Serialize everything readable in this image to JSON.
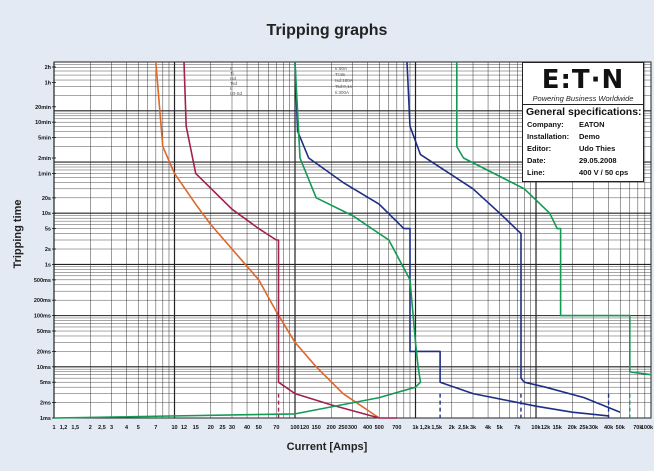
{
  "chart_data": {
    "type": "line",
    "title": "Tripping graphs",
    "xlabel": "Current [Amps]",
    "ylabel": "Tripping time",
    "x_scale": "log",
    "y_scale": "log",
    "xlim": [
      1,
      90000
    ],
    "ylim_seconds": [
      0.001,
      9000
    ],
    "x_tick_labels": [
      "1",
      "1,2",
      "1,5",
      "2",
      "2,5",
      "3",
      "4",
      "5",
      "7",
      "10",
      "12",
      "15",
      "20",
      "25",
      "30",
      "40",
      "50",
      "70",
      "100",
      "120",
      "150",
      "200",
      "250",
      "300",
      "400",
      "500",
      "700",
      "1k",
      "1,2k",
      "1,5k",
      "2k",
      "2,5k",
      "3k",
      "4k",
      "5k",
      "7k",
      "10k",
      "12k",
      "15k",
      "20k",
      "25k",
      "30k",
      "40k",
      "50k",
      "70k",
      "100k"
    ],
    "y_tick_labels": [
      "2h",
      "1h",
      "20min",
      "10min",
      "5min",
      "2min",
      "1min",
      "20s",
      "10s",
      "5s",
      "2s",
      "1s",
      "500ms",
      "200ms",
      "100ms",
      "50ms",
      "20ms",
      "10ms",
      "5ms",
      "2ms",
      "1ms"
    ],
    "grid": true,
    "series": [
      {
        "color": "#e0662a",
        "values": [
          [
            7,
            9000
          ],
          [
            8,
            200
          ],
          [
            10,
            60
          ],
          [
            15,
            15
          ],
          [
            20,
            6
          ],
          [
            30,
            2
          ],
          [
            50,
            0.5
          ],
          [
            70,
            0.12
          ],
          [
            100,
            0.03
          ],
          [
            150,
            0.01
          ],
          [
            250,
            0.003
          ],
          [
            500,
            0.001
          ]
        ]
      },
      {
        "color": "#a0204e",
        "values": [
          [
            12,
            9000
          ],
          [
            12.5,
            500
          ],
          [
            15,
            60
          ],
          [
            30,
            12
          ],
          [
            50,
            5
          ],
          [
            70,
            3
          ],
          [
            73,
            3
          ],
          [
            73,
            0.005
          ],
          [
            100,
            0.003
          ],
          [
            200,
            0.0018
          ],
          [
            500,
            0.001
          ],
          [
            700,
            0.001
          ]
        ]
      },
      {
        "color": "#1e2e85",
        "values": [
          [
            100,
            9000
          ],
          [
            105,
            400
          ],
          [
            130,
            120
          ],
          [
            250,
            40
          ],
          [
            500,
            15
          ],
          [
            800,
            5
          ],
          [
            900,
            5
          ],
          [
            900,
            0.02
          ],
          [
            1600,
            0.02
          ],
          [
            1600,
            0.005
          ],
          [
            3000,
            0.003
          ],
          [
            10000,
            0.0017
          ],
          [
            20000,
            0.0013
          ],
          [
            40000,
            0.0011
          ]
        ]
      },
      {
        "color": "#1e2e85",
        "values": [
          [
            850,
            9000
          ],
          [
            900,
            500
          ],
          [
            1100,
            140
          ],
          [
            3000,
            30
          ],
          [
            5000,
            10
          ],
          [
            7500,
            4
          ],
          [
            7500,
            0.006
          ],
          [
            8000,
            0.005
          ],
          [
            12000,
            0.004
          ],
          [
            25000,
            0.0025
          ],
          [
            50000,
            0.0013
          ]
        ]
      },
      {
        "color": "#139a55",
        "values": [
          [
            1,
            0.001
          ],
          [
            100,
            0.0012
          ],
          [
            500,
            0.0025
          ],
          [
            1000,
            0.004
          ],
          [
            1100,
            0.005
          ],
          [
            1050,
            0.01
          ],
          [
            1000,
            0.03
          ],
          [
            900,
            0.5
          ],
          [
            600,
            3
          ],
          [
            300,
            9
          ],
          [
            150,
            20
          ],
          [
            110,
            120
          ],
          [
            100,
            9000
          ]
        ]
      },
      {
        "color": "#139a55",
        "values": [
          [
            2200,
            9000
          ],
          [
            2200,
            200
          ],
          [
            2500,
            120
          ],
          [
            8000,
            30
          ],
          [
            13000,
            10
          ],
          [
            15000,
            5
          ],
          [
            16000,
            5
          ],
          [
            16000,
            0.1
          ],
          [
            60000,
            0.1
          ],
          [
            60000,
            0.008
          ],
          [
            90000,
            0.007
          ]
        ]
      }
    ],
    "curve_labels": [
      "Ir",
      "Ti",
      "Isd",
      "Tsd",
      "Ii",
      "I2t-Sd",
      "Ir:60A",
      "Tr:8s",
      "Isd:180A",
      "Tsd:0,1s",
      "Ii:300A"
    ],
    "colors": {
      "background": "#e3eaf3",
      "plot_background": "#ffffff",
      "grid": "#222222"
    }
  },
  "info_box": {
    "logo": "E:T·N",
    "tagline": "Powering Business Worldwide",
    "heading": "General specifications:",
    "rows": [
      {
        "key": "Company:",
        "value": "EATON"
      },
      {
        "key": "Installation:",
        "value": "Demo"
      },
      {
        "key": "Editor:",
        "value": "Udo Thies"
      },
      {
        "key": "Date:",
        "value": "29.05.2008"
      },
      {
        "key": "Line:",
        "value": "400 V / 50 cps"
      }
    ]
  }
}
